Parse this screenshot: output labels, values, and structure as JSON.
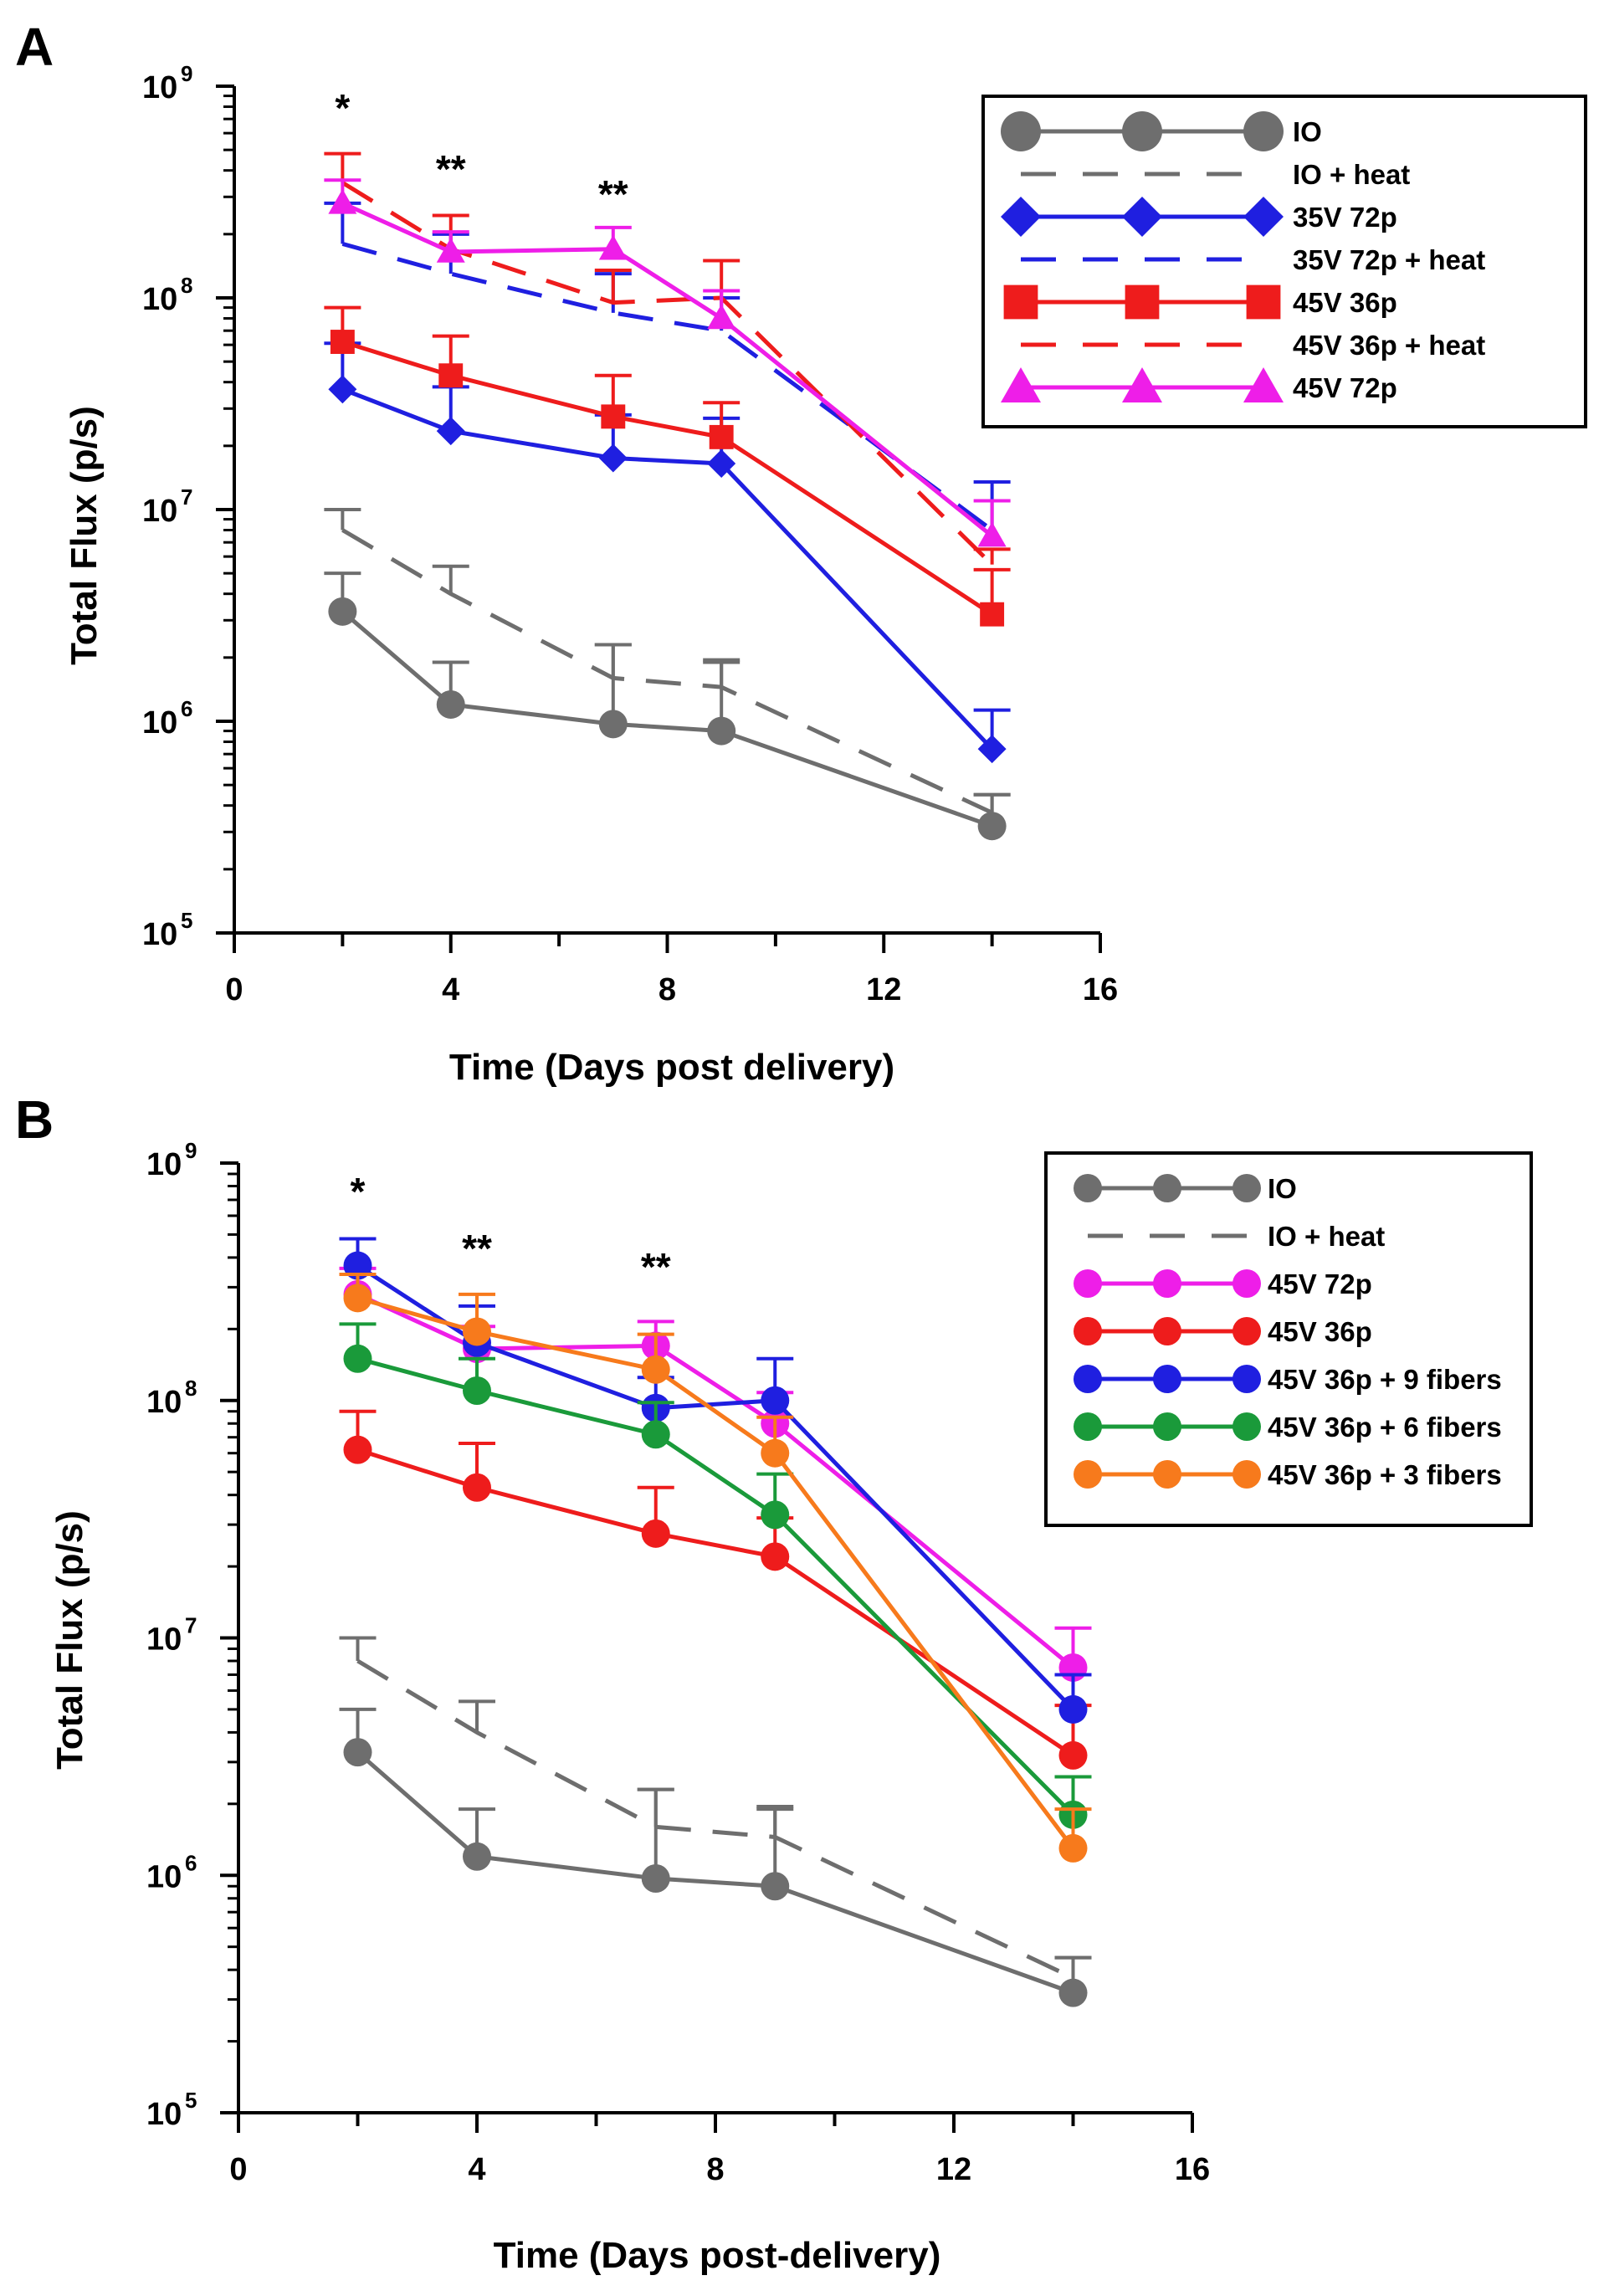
{
  "chart_data": [
    {
      "panel": "A",
      "type": "line",
      "xlabel": "Time (Days post delivery)",
      "ylabel": "Total Flux (p/s)",
      "yscale": "log",
      "xlim": [
        0,
        16
      ],
      "ylim": [
        100000,
        1000000000
      ],
      "xticks": [
        0,
        4,
        8,
        12,
        16
      ],
      "xtick_labels": [
        "0",
        "4",
        "8",
        "12",
        "16"
      ],
      "ytick_exponents": [
        "5",
        "6",
        "7",
        "8",
        "9"
      ],
      "ytick_base": "10",
      "x": [
        2,
        4,
        7,
        9,
        14
      ],
      "annotations": [
        {
          "x": 2,
          "text": "*"
        },
        {
          "x": 4,
          "text": "**"
        },
        {
          "x": 7,
          "text": "**"
        }
      ],
      "series": [
        {
          "name": "IO",
          "color": "#6e6e6e",
          "dash": false,
          "marker": "circle",
          "values": [
            3300000,
            1200000,
            970000,
            900000,
            320000
          ],
          "err": [
            5000000,
            1900000,
            2300000,
            1900000,
            450000
          ]
        },
        {
          "name": "IO + heat",
          "color": "#6e6e6e",
          "dash": true,
          "marker": "none",
          "values": [
            8000000,
            4000000,
            1600000,
            1450000,
            370000
          ],
          "err": [
            10000000,
            5400000,
            2300000,
            1950000,
            450000
          ]
        },
        {
          "name": "35V 72p",
          "color": "#1f1fe0",
          "dash": false,
          "marker": "diamond",
          "values": [
            37000000,
            23500000,
            17500000,
            16500000,
            740000
          ],
          "err": [
            61000000,
            38000000,
            28000000,
            27000000,
            1130000
          ]
        },
        {
          "name": "35V 72p + heat",
          "color": "#1f1fe0",
          "dash": true,
          "marker": "none",
          "values": [
            180000000,
            130000000,
            85000000,
            70000000,
            8000000
          ],
          "err": [
            280000000,
            200000000,
            130000000,
            100000000,
            13500000
          ]
        },
        {
          "name": "45V 36p",
          "color": "#ee1c1c",
          "dash": false,
          "marker": "square",
          "values": [
            62000000,
            43000000,
            27500000,
            22000000,
            3200000
          ],
          "err": [
            90000000,
            66000000,
            43000000,
            32000000,
            5200000
          ]
        },
        {
          "name": "45V 36p + heat",
          "color": "#ee1c1c",
          "dash": true,
          "marker": "none",
          "values": [
            350000000,
            170000000,
            95000000,
            100000000,
            5500000
          ],
          "err": [
            480000000,
            245000000,
            135000000,
            150000000,
            6500000
          ]
        },
        {
          "name": "45V 72p",
          "color": "#ee1ee8",
          "dash": false,
          "marker": "triangle",
          "values": [
            280000000,
            165000000,
            170000000,
            80000000,
            7500000
          ],
          "err": [
            360000000,
            205000000,
            215000000,
            108000000,
            11000000
          ]
        }
      ]
    },
    {
      "panel": "B",
      "type": "line",
      "xlabel": "Time (Days post-delivery)",
      "ylabel": "Total Flux (p/s)",
      "yscale": "log",
      "xlim": [
        0,
        16
      ],
      "ylim": [
        100000,
        1000000000
      ],
      "xticks": [
        0,
        4,
        8,
        12,
        16
      ],
      "xtick_labels": [
        "0",
        "4",
        "8",
        "12",
        "16"
      ],
      "ytick_exponents": [
        "5",
        "6",
        "7",
        "8",
        "9"
      ],
      "ytick_base": "10",
      "x": [
        2,
        4,
        7,
        9,
        14
      ],
      "annotations": [
        {
          "x": 2,
          "text": "*"
        },
        {
          "x": 4,
          "text": "**"
        },
        {
          "x": 7,
          "text": "**"
        }
      ],
      "series": [
        {
          "name": "IO",
          "color": "#6e6e6e",
          "dash": false,
          "marker": "circle",
          "values": [
            3300000,
            1200000,
            970000,
            900000,
            320000
          ],
          "err": [
            5000000,
            1900000,
            2300000,
            1900000,
            450000
          ]
        },
        {
          "name": "IO + heat",
          "color": "#6e6e6e",
          "dash": true,
          "marker": "none",
          "values": [
            8000000,
            4000000,
            1600000,
            1450000,
            370000
          ],
          "err": [
            10000000,
            5400000,
            2300000,
            1950000,
            450000
          ]
        },
        {
          "name": "45V 72p",
          "color": "#ee1ee8",
          "dash": false,
          "marker": "circle",
          "values": [
            280000000,
            165000000,
            170000000,
            80000000,
            7500000
          ],
          "err": [
            360000000,
            205000000,
            215000000,
            108000000,
            11000000
          ]
        },
        {
          "name": "45V 36p",
          "color": "#ee1c1c",
          "dash": false,
          "marker": "circle",
          "values": [
            62000000,
            43000000,
            27500000,
            22000000,
            3200000
          ],
          "err": [
            90000000,
            66000000,
            43000000,
            32000000,
            5200000
          ]
        },
        {
          "name": "45V 36p + 9 fibers",
          "color": "#1f1fe0",
          "dash": false,
          "marker": "circle",
          "values": [
            370000000,
            175000000,
            93000000,
            100000000,
            5000000
          ],
          "err": [
            480000000,
            250000000,
            125000000,
            150000000,
            7000000
          ]
        },
        {
          "name": "45V 36p + 6 fibers",
          "color": "#1a9a3a",
          "dash": false,
          "marker": "circle",
          "values": [
            150000000,
            110000000,
            72000000,
            33000000,
            1800000
          ],
          "err": [
            210000000,
            150000000,
            98000000,
            49000000,
            2600000
          ]
        },
        {
          "name": "45V 36p + 3 fibers",
          "color": "#f77a1c",
          "dash": false,
          "marker": "circle",
          "values": [
            270000000,
            195000000,
            135000000,
            60000000,
            1300000
          ],
          "err": [
            340000000,
            280000000,
            190000000,
            85000000,
            1900000
          ]
        }
      ]
    }
  ]
}
